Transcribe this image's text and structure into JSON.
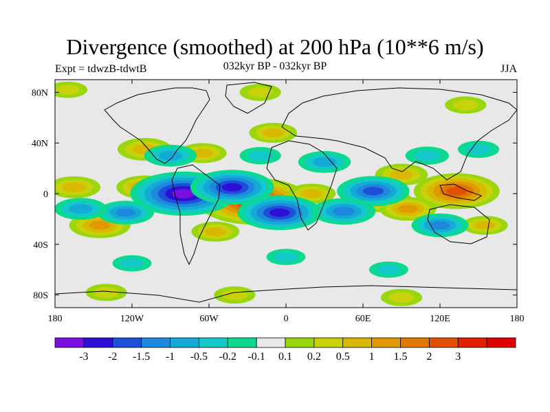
{
  "header": {
    "title": "Divergence (smoothed) at 200 hPa (10**6 m/s)",
    "experiment": "Expt = tdwzB-tdwtB",
    "period": "032kyr BP - 032kyr BP",
    "season": "JJA"
  },
  "chart_data": {
    "type": "heatmap",
    "title": "Divergence (smoothed) at 200 hPa (10**6 m/s)",
    "subtitle_left": "Expt = tdwzB-tdwtB",
    "subtitle_center": "032kyr BP - 032kyr BP",
    "subtitle_right": "JJA",
    "projection": "cylindrical equidistant",
    "xlim": [
      -180,
      180
    ],
    "ylim": [
      -90,
      90
    ],
    "x_ticks": [
      {
        "value": -180,
        "label": "180"
      },
      {
        "value": -120,
        "label": "120W"
      },
      {
        "value": -60,
        "label": "60W"
      },
      {
        "value": 0,
        "label": "0"
      },
      {
        "value": 60,
        "label": "60E"
      },
      {
        "value": 120,
        "label": "120E"
      },
      {
        "value": 180,
        "label": "180"
      }
    ],
    "y_ticks": [
      {
        "value": 80,
        "label": "80N"
      },
      {
        "value": 40,
        "label": "40N"
      },
      {
        "value": 0,
        "label": "0"
      },
      {
        "value": -40,
        "label": "40S"
      },
      {
        "value": -80,
        "label": "80S"
      }
    ],
    "colorbar": {
      "colors": [
        "#7a10e0",
        "#2e0fd6",
        "#1e4fd8",
        "#1e88dd",
        "#15a9d5",
        "#12c8c8",
        "#0bd98f",
        "#e8e8e8",
        "#9ad60e",
        "#c8d20a",
        "#d8b800",
        "#e09a00",
        "#e07800",
        "#e05000",
        "#e02000",
        "#e00000"
      ],
      "labels": [
        "-3",
        "-2",
        "-1.5",
        "-1",
        "-0.5",
        "-0.2",
        "-0.1",
        "0.1",
        "0.2",
        "0.5",
        "1",
        "1.5",
        "2",
        "3"
      ]
    },
    "anomalies": [
      {
        "lon": -25,
        "lat": -6,
        "value": 3.5
      },
      {
        "lon": 133,
        "lat": 2,
        "value": 2.3
      },
      {
        "lon": -145,
        "lat": -25,
        "value": 1.2
      },
      {
        "lon": -110,
        "lat": 5,
        "value": 1.0
      },
      {
        "lon": -165,
        "lat": 5,
        "value": 0.8
      },
      {
        "lon": 75,
        "lat": -5,
        "value": 1.1
      },
      {
        "lon": 95,
        "lat": -12,
        "value": 1.0
      },
      {
        "lon": -110,
        "lat": 35,
        "value": 0.9
      },
      {
        "lon": -65,
        "lat": 32,
        "value": 0.6
      },
      {
        "lon": -10,
        "lat": 48,
        "value": 0.6
      },
      {
        "lon": 90,
        "lat": 15,
        "value": 0.8
      },
      {
        "lon": 20,
        "lat": 0,
        "value": 0.6
      },
      {
        "lon": -55,
        "lat": -30,
        "value": 0.6
      },
      {
        "lon": 155,
        "lat": -25,
        "value": 0.5
      },
      {
        "lon": -80,
        "lat": 0,
        "value": -3.2
      },
      {
        "lon": -42,
        "lat": 5,
        "value": -2.2
      },
      {
        "lon": -5,
        "lat": -15,
        "value": -2.2
      },
      {
        "lon": 68,
        "lat": 2,
        "value": -1.7
      },
      {
        "lon": 45,
        "lat": -14,
        "value": -1.3
      },
      {
        "lon": 120,
        "lat": -25,
        "value": -1.0
      },
      {
        "lon": -125,
        "lat": -15,
        "value": -1.0
      },
      {
        "lon": -160,
        "lat": -12,
        "value": -0.8
      },
      {
        "lon": 30,
        "lat": 25,
        "value": -0.8
      },
      {
        "lon": -90,
        "lat": 30,
        "value": -0.8
      },
      {
        "lon": 110,
        "lat": 30,
        "value": -0.4
      },
      {
        "lon": 150,
        "lat": 35,
        "value": -0.3
      },
      {
        "lon": -20,
        "lat": 30,
        "value": -0.3
      },
      {
        "lon": 0,
        "lat": -50,
        "value": -0.2
      },
      {
        "lon": -120,
        "lat": -55,
        "value": -0.2
      },
      {
        "lon": 80,
        "lat": -60,
        "value": -0.2
      },
      {
        "lon": -140,
        "lat": -78,
        "value": 0.3
      },
      {
        "lon": -40,
        "lat": -80,
        "value": 0.3
      },
      {
        "lon": 90,
        "lat": -82,
        "value": 0.3
      },
      {
        "lon": -20,
        "lat": 80,
        "value": 0.3
      },
      {
        "lon": 140,
        "lat": 70,
        "value": 0.3
      },
      {
        "lon": -170,
        "lat": 82,
        "value": 0.2
      }
    ]
  }
}
